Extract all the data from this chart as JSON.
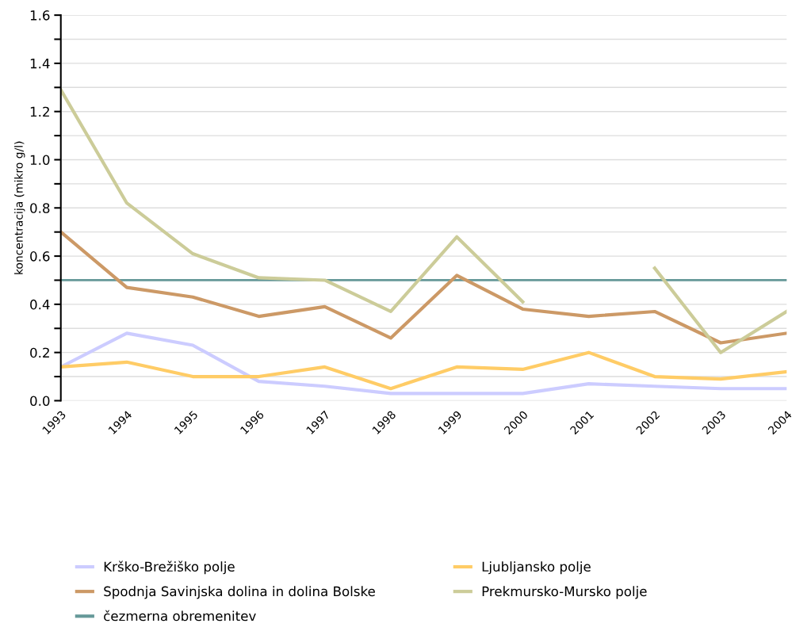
{
  "chart_data": {
    "type": "line",
    "ylabel": "koncentracija (mikro g/l)",
    "x": [
      1993,
      1994,
      1995,
      1996,
      1997,
      1998,
      1999,
      2000,
      2001,
      2002,
      2003,
      2004
    ],
    "series": [
      {
        "name": "Krško-Brežiško polje",
        "color": "#ccccff",
        "values": [
          0.14,
          0.28,
          0.23,
          0.08,
          0.06,
          0.03,
          0.03,
          0.03,
          0.07,
          0.06,
          0.05,
          0.05
        ]
      },
      {
        "name": "Ljubljansko polje",
        "color": "#ffcc66",
        "values": [
          0.14,
          0.16,
          0.1,
          0.1,
          0.14,
          0.05,
          0.14,
          0.13,
          0.2,
          0.1,
          0.09,
          0.12
        ]
      },
      {
        "name": "Spodnja Savinjska dolina in dolina Bolske",
        "color": "#cc9966",
        "values": [
          0.7,
          0.47,
          0.43,
          0.35,
          0.39,
          0.26,
          0.52,
          0.38,
          0.35,
          0.37,
          0.24,
          0.28
        ]
      },
      {
        "name": "Prekmursko-Mursko polje",
        "color": "#cccc99",
        "values": [
          1.29,
          0.82,
          0.61,
          0.51,
          0.5,
          0.37,
          0.68,
          0.41,
          null,
          0.55,
          0.2,
          0.37
        ]
      }
    ],
    "ref_lines": [
      {
        "axis": "y",
        "value": 0.5,
        "label": "čezmerna obremenitev",
        "color": "#669999",
        "line_style": "solid"
      }
    ],
    "xlim": [
      1993,
      2004
    ],
    "xticks": [
      1993,
      1994,
      1995,
      1996,
      1997,
      1998,
      1999,
      2000,
      2001,
      2002,
      2003,
      2004
    ],
    "ylim": [
      0,
      1.6
    ],
    "yticks": [
      {
        "value": 0,
        "label": "0.0"
      },
      {
        "value": 0.1,
        "label": null
      },
      {
        "value": 0.2,
        "label": "0.2"
      },
      {
        "value": 0.3,
        "label": null
      },
      {
        "value": 0.4,
        "label": "0.4"
      },
      {
        "value": 0.5,
        "label": null
      },
      {
        "value": 0.6,
        "label": "0.6"
      },
      {
        "value": 0.7,
        "label": null
      },
      {
        "value": 0.8,
        "label": "0.8"
      },
      {
        "value": 0.9,
        "label": null
      },
      {
        "value": 1.0,
        "label": "1.0"
      },
      {
        "value": 1.1,
        "label": null
      },
      {
        "value": 1.2,
        "label": "1.2"
      },
      {
        "value": 1.3,
        "label": null
      },
      {
        "value": 1.4,
        "label": "1.4"
      },
      {
        "value": 1.5,
        "label": null
      },
      {
        "value": 1.6,
        "label": "1.6"
      }
    ],
    "grid": "y",
    "legend": "bottom",
    "marker": "none",
    "line_style": "solid"
  }
}
